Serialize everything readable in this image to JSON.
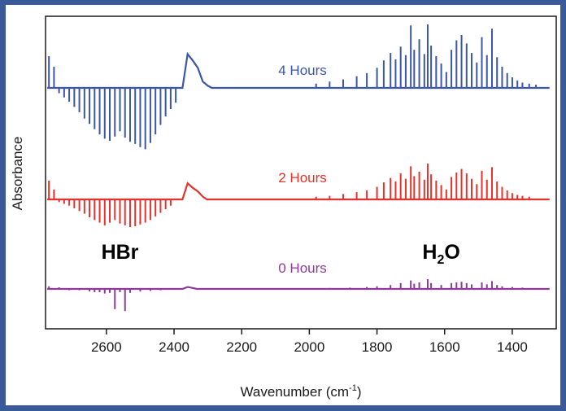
{
  "chart_data": {
    "type": "line",
    "xlabel_main": "Wavenumber (cm",
    "xlabel_sup": "-1",
    "xlabel_tail": ")",
    "ylabel": "Absorbance",
    "xlim": [
      2780,
      1270
    ],
    "x_reversed": true,
    "xticks": [
      2600,
      2400,
      2200,
      2000,
      1800,
      1600,
      1400
    ],
    "grid": false,
    "annotations": [
      {
        "id": "hbr",
        "text": "HBr",
        "sub": "",
        "tail": "",
        "x": 2560
      },
      {
        "id": "h2o",
        "main": "H",
        "sub": "2",
        "tail": "O",
        "x": 1610
      }
    ],
    "series": [
      {
        "name": "4 Hours",
        "color": "#3b56a8",
        "baseline": 0.0,
        "broad_feature": [
          [
            2360,
            3.2
          ],
          [
            2345,
            2.6
          ],
          [
            2330,
            1.9
          ],
          [
            2315,
            0.6
          ],
          [
            2300,
            0.2
          ]
        ],
        "hbr_lines": [
          [
            2770,
            3.0
          ],
          [
            2755,
            2.0
          ],
          [
            2740,
            -0.5
          ],
          [
            2725,
            -0.9
          ],
          [
            2710,
            -1.3
          ],
          [
            2695,
            -1.8
          ],
          [
            2680,
            -2.3
          ],
          [
            2665,
            -2.9
          ],
          [
            2650,
            -3.4
          ],
          [
            2635,
            -3.9
          ],
          [
            2620,
            -4.4
          ],
          [
            2605,
            -4.8
          ],
          [
            2590,
            -5.0
          ],
          [
            2575,
            -4.6
          ],
          [
            2560,
            -4.1
          ],
          [
            2545,
            -4.7
          ],
          [
            2530,
            -5.1
          ],
          [
            2515,
            -5.3
          ],
          [
            2500,
            -5.6
          ],
          [
            2485,
            -5.8
          ],
          [
            2470,
            -5.2
          ],
          [
            2455,
            -4.4
          ],
          [
            2440,
            -3.5
          ],
          [
            2425,
            -2.7
          ],
          [
            2410,
            -2.0
          ],
          [
            2395,
            -1.4
          ]
        ],
        "h2o_lines": [
          [
            1980,
            0.4
          ],
          [
            1940,
            0.6
          ],
          [
            1900,
            0.8
          ],
          [
            1860,
            1.1
          ],
          [
            1830,
            1.4
          ],
          [
            1800,
            1.9
          ],
          [
            1780,
            2.6
          ],
          [
            1760,
            3.3
          ],
          [
            1745,
            2.7
          ],
          [
            1730,
            3.9
          ],
          [
            1715,
            3.1
          ],
          [
            1700,
            5.9
          ],
          [
            1690,
            3.6
          ],
          [
            1675,
            4.6
          ],
          [
            1660,
            3.2
          ],
          [
            1650,
            6.0
          ],
          [
            1640,
            4.0
          ],
          [
            1625,
            3.0
          ],
          [
            1610,
            2.3
          ],
          [
            1595,
            1.5
          ],
          [
            1580,
            3.6
          ],
          [
            1565,
            4.5
          ],
          [
            1550,
            5.0
          ],
          [
            1535,
            4.2
          ],
          [
            1520,
            3.3
          ],
          [
            1505,
            2.4
          ],
          [
            1490,
            4.8
          ],
          [
            1475,
            3.1
          ],
          [
            1460,
            5.6
          ],
          [
            1445,
            2.9
          ],
          [
            1430,
            2.0
          ],
          [
            1415,
            1.4
          ],
          [
            1400,
            1.0
          ],
          [
            1385,
            0.7
          ],
          [
            1370,
            0.5
          ],
          [
            1350,
            0.4
          ],
          [
            1330,
            0.3
          ]
        ]
      },
      {
        "name": "2 Hours",
        "color": "#e6322b",
        "baseline": 0.0,
        "broad_feature": [
          [
            2360,
            1.8
          ],
          [
            2345,
            1.3
          ],
          [
            2330,
            0.9
          ],
          [
            2315,
            0.3
          ]
        ],
        "hbr_lines": [
          [
            2770,
            2.1
          ],
          [
            2755,
            1.1
          ],
          [
            2740,
            -0.3
          ],
          [
            2725,
            -0.5
          ],
          [
            2710,
            -0.7
          ],
          [
            2695,
            -1.0
          ],
          [
            2680,
            -1.3
          ],
          [
            2665,
            -1.6
          ],
          [
            2650,
            -2.0
          ],
          [
            2635,
            -2.3
          ],
          [
            2620,
            -2.6
          ],
          [
            2605,
            -2.9
          ],
          [
            2590,
            -2.6
          ],
          [
            2575,
            -2.3
          ],
          [
            2560,
            -2.7
          ],
          [
            2545,
            -2.9
          ],
          [
            2530,
            -3.1
          ],
          [
            2515,
            -3.0
          ],
          [
            2500,
            -2.8
          ],
          [
            2485,
            -2.6
          ],
          [
            2470,
            -2.3
          ],
          [
            2455,
            -1.9
          ],
          [
            2440,
            -1.5
          ],
          [
            2425,
            -1.1
          ],
          [
            2410,
            -0.7
          ]
        ],
        "h2o_lines": [
          [
            1980,
            0.3
          ],
          [
            1940,
            0.4
          ],
          [
            1900,
            0.6
          ],
          [
            1860,
            0.8
          ],
          [
            1830,
            1.0
          ],
          [
            1800,
            1.4
          ],
          [
            1780,
            1.9
          ],
          [
            1760,
            2.4
          ],
          [
            1745,
            2.0
          ],
          [
            1730,
            2.9
          ],
          [
            1715,
            2.3
          ],
          [
            1700,
            3.7
          ],
          [
            1690,
            2.6
          ],
          [
            1675,
            3.1
          ],
          [
            1660,
            2.2
          ],
          [
            1650,
            4.0
          ],
          [
            1640,
            2.8
          ],
          [
            1625,
            2.1
          ],
          [
            1610,
            1.6
          ],
          [
            1595,
            1.1
          ],
          [
            1580,
            2.5
          ],
          [
            1565,
            3.0
          ],
          [
            1550,
            3.4
          ],
          [
            1535,
            2.9
          ],
          [
            1520,
            2.3
          ],
          [
            1505,
            1.7
          ],
          [
            1490,
            3.2
          ],
          [
            1475,
            2.2
          ],
          [
            1460,
            3.6
          ],
          [
            1445,
            2.0
          ],
          [
            1430,
            1.4
          ],
          [
            1415,
            1.0
          ],
          [
            1400,
            0.7
          ],
          [
            1385,
            0.5
          ],
          [
            1370,
            0.4
          ],
          [
            1350,
            0.3
          ]
        ]
      },
      {
        "name": "0 Hours",
        "color": "#8e3a9a",
        "baseline": 0.0,
        "broad_feature": [
          [
            2360,
            0.3
          ],
          [
            2345,
            0.15
          ]
        ],
        "hbr_lines": [
          [
            2770,
            0.4
          ],
          [
            2740,
            0.25
          ],
          [
            2710,
            -0.2
          ],
          [
            2680,
            -0.2
          ],
          [
            2650,
            -0.4
          ],
          [
            2635,
            -0.5
          ],
          [
            2620,
            -0.5
          ],
          [
            2605,
            -0.7
          ],
          [
            2590,
            -0.6
          ],
          [
            2575,
            -3.1
          ],
          [
            2560,
            -0.5
          ],
          [
            2545,
            -3.4
          ],
          [
            2530,
            -0.6
          ],
          [
            2500,
            -0.4
          ],
          [
            2470,
            -0.3
          ],
          [
            2440,
            -0.2
          ]
        ],
        "h2o_lines": [
          [
            1940,
            0.15
          ],
          [
            1880,
            0.2
          ],
          [
            1830,
            0.3
          ],
          [
            1800,
            0.4
          ],
          [
            1760,
            0.6
          ],
          [
            1730,
            0.9
          ],
          [
            1700,
            1.3
          ],
          [
            1690,
            0.8
          ],
          [
            1675,
            1.0
          ],
          [
            1650,
            1.5
          ],
          [
            1640,
            0.9
          ],
          [
            1610,
            0.6
          ],
          [
            1580,
            0.9
          ],
          [
            1565,
            1.0
          ],
          [
            1550,
            1.1
          ],
          [
            1535,
            0.9
          ],
          [
            1520,
            0.7
          ],
          [
            1490,
            1.0
          ],
          [
            1475,
            0.7
          ],
          [
            1460,
            1.2
          ],
          [
            1445,
            0.6
          ],
          [
            1430,
            0.4
          ],
          [
            1400,
            0.3
          ],
          [
            1370,
            0.2
          ]
        ]
      }
    ]
  }
}
